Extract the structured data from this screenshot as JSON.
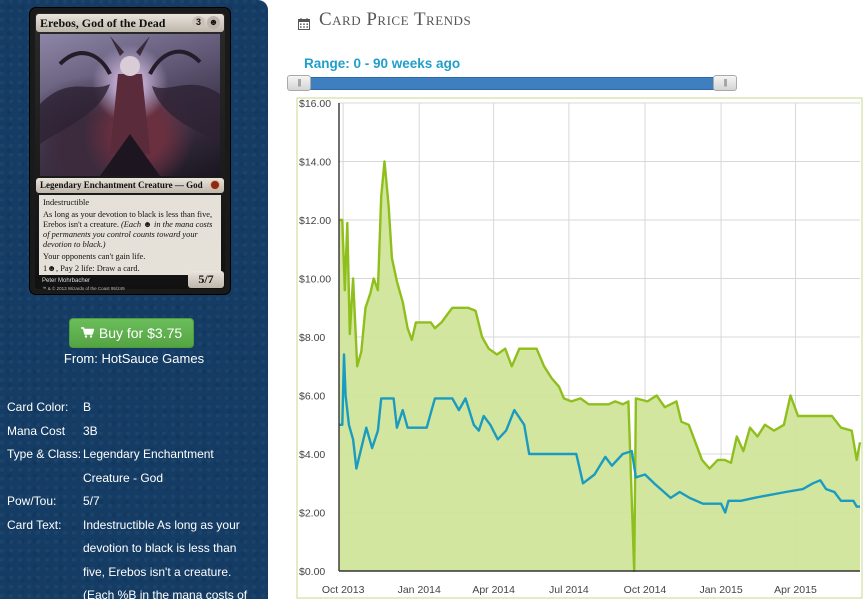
{
  "card": {
    "name": "Erebos, God of the Dead",
    "cost_generic": "3",
    "cost_black": "☻",
    "type_line": "Legendary Enchantment Creature — God",
    "text_line1": "Indestructible",
    "text_line2": "As long as your devotion to black is less than five, Erebos isn't a creature.",
    "text_reminder": "(Each ☻ in the mana costs of permanents you control counts toward your devotion to black.)",
    "text_line3": "Your opponents can't gain life.",
    "text_line4": "1☻, Pay 2 life: Draw a card.",
    "power_toughness": "5/7",
    "artist": "Peter Mohrbacher",
    "copyright": "™ & © 2013 Wizards of the Coast 95/249"
  },
  "buy": {
    "label": "Buy for $3.75",
    "from": "From: HotSauce Games"
  },
  "details": [
    {
      "label": "Card Color:",
      "value": "B"
    },
    {
      "label": "Mana Cost",
      "value": "3B"
    },
    {
      "label": "Type & Class:",
      "value": "Legendary Enchantment"
    },
    {
      "label": "",
      "value": "Creature - God"
    },
    {
      "label": "Pow/Tou:",
      "value": "5/7"
    },
    {
      "label": "Card Text:",
      "value": "Indestructible As long as your"
    },
    {
      "label": "",
      "value": "devotion to black is less than"
    },
    {
      "label": "",
      "value": "five, Erebos isn't a creature."
    },
    {
      "label": "",
      "value": "(Each %B in the mana costs of"
    }
  ],
  "panel": {
    "title": "Card Price Trends",
    "range_label": "Range: 0 - 90 weeks ago",
    "calendar_icon": "calendar-icon"
  },
  "colors": {
    "sidebar_bg": "#143c64",
    "buy_green": "#5cb04b",
    "range_blue": "#1f9fc9",
    "series_high": "#8fbf1c",
    "series_high_fill": "#d1e59a",
    "series_low": "#1a9bc0"
  },
  "chart_data": {
    "type": "line",
    "yticks": [
      "$0.00",
      "$2.00",
      "$4.00",
      "$6.00",
      "$8.00",
      "$10.00",
      "$12.00",
      "$14.00",
      "$16.00"
    ],
    "xticks": [
      "Oct 2013",
      "Jan 2014",
      "Apr 2014",
      "Jul 2014",
      "Oct 2014",
      "Jan 2015",
      "Apr 2015"
    ],
    "ylim": [
      0,
      16
    ],
    "grid": true,
    "series": [
      {
        "color": "#8fbf1c",
        "fill": true,
        "values": [
          [
            "2013-09-26",
            12.0
          ],
          [
            "2013-09-30",
            12.0
          ],
          [
            "2013-10-03",
            9.6
          ],
          [
            "2013-10-06",
            11.9
          ],
          [
            "2013-10-09",
            8.1
          ],
          [
            "2013-10-13",
            10.0
          ],
          [
            "2013-10-18",
            7.0
          ],
          [
            "2013-10-23",
            7.5
          ],
          [
            "2013-10-28",
            9.0
          ],
          [
            "2013-11-03",
            9.5
          ],
          [
            "2013-11-07",
            10.0
          ],
          [
            "2013-11-12",
            9.6
          ],
          [
            "2013-11-16",
            12.8
          ],
          [
            "2013-11-20",
            14.0
          ],
          [
            "2013-11-25",
            12.5
          ],
          [
            "2013-11-29",
            10.7
          ],
          [
            "2013-12-05",
            9.9
          ],
          [
            "2013-12-12",
            9.2
          ],
          [
            "2013-12-18",
            8.3
          ],
          [
            "2013-12-23",
            7.9
          ],
          [
            "2013-12-28",
            8.5
          ],
          [
            "2014-01-15",
            8.5
          ],
          [
            "2014-01-20",
            8.3
          ],
          [
            "2014-01-28",
            8.5
          ],
          [
            "2014-02-10",
            9.0
          ],
          [
            "2014-03-01",
            9.0
          ],
          [
            "2014-03-10",
            8.9
          ],
          [
            "2014-03-18",
            8.0
          ],
          [
            "2014-03-26",
            7.6
          ],
          [
            "2014-04-05",
            7.4
          ],
          [
            "2014-04-15",
            7.6
          ],
          [
            "2014-04-23",
            7.0
          ],
          [
            "2014-05-02",
            7.6
          ],
          [
            "2014-05-23",
            7.6
          ],
          [
            "2014-06-01",
            7.0
          ],
          [
            "2014-06-10",
            6.6
          ],
          [
            "2014-06-19",
            6.3
          ],
          [
            "2014-06-25",
            5.9
          ],
          [
            "2014-07-04",
            5.8
          ],
          [
            "2014-07-15",
            5.9
          ],
          [
            "2014-07-25",
            5.7
          ],
          [
            "2014-08-06",
            5.7
          ],
          [
            "2014-08-18",
            5.7
          ],
          [
            "2014-08-26",
            5.8
          ],
          [
            "2014-09-04",
            5.7
          ],
          [
            "2014-09-11",
            5.8
          ],
          [
            "2014-09-18",
            0.0
          ],
          [
            "2014-09-20",
            5.9
          ],
          [
            "2014-10-04",
            5.8
          ],
          [
            "2014-10-15",
            6.0
          ],
          [
            "2014-10-25",
            5.6
          ],
          [
            "2014-11-08",
            5.8
          ],
          [
            "2014-11-14",
            5.1
          ],
          [
            "2014-11-23",
            5.0
          ],
          [
            "2014-12-01",
            4.4
          ],
          [
            "2014-12-09",
            3.8
          ],
          [
            "2014-12-18",
            3.5
          ],
          [
            "2014-12-28",
            3.8
          ],
          [
            "2015-01-05",
            3.8
          ],
          [
            "2015-01-13",
            3.7
          ],
          [
            "2015-01-20",
            4.6
          ],
          [
            "2015-01-28",
            4.1
          ],
          [
            "2015-02-05",
            4.9
          ],
          [
            "2015-02-14",
            4.6
          ],
          [
            "2015-02-23",
            5.0
          ],
          [
            "2015-03-06",
            4.8
          ],
          [
            "2015-03-18",
            5.0
          ],
          [
            "2015-03-26",
            6.0
          ],
          [
            "2015-04-04",
            5.3
          ],
          [
            "2015-04-20",
            5.3
          ],
          [
            "2015-05-03",
            5.3
          ],
          [
            "2015-05-15",
            5.3
          ],
          [
            "2015-05-26",
            4.9
          ],
          [
            "2015-06-08",
            4.8
          ],
          [
            "2015-06-14",
            3.8
          ],
          [
            "2015-06-18",
            4.4
          ]
        ]
      },
      {
        "color": "#1a9bc0",
        "fill": false,
        "values": [
          [
            "2013-09-26",
            5.0
          ],
          [
            "2013-09-30",
            5.0
          ],
          [
            "2013-10-02",
            7.4
          ],
          [
            "2013-10-04",
            6.0
          ],
          [
            "2013-10-08",
            5.0
          ],
          [
            "2013-10-13",
            4.5
          ],
          [
            "2013-10-17",
            3.5
          ],
          [
            "2013-10-23",
            4.2
          ],
          [
            "2013-10-29",
            4.9
          ],
          [
            "2013-11-05",
            4.2
          ],
          [
            "2013-11-12",
            4.8
          ],
          [
            "2013-11-16",
            5.9
          ],
          [
            "2013-12-01",
            5.9
          ],
          [
            "2013-12-05",
            4.9
          ],
          [
            "2013-12-12",
            5.5
          ],
          [
            "2013-12-18",
            4.9
          ],
          [
            "2014-01-10",
            4.9
          ],
          [
            "2014-01-20",
            5.9
          ],
          [
            "2014-02-10",
            5.9
          ],
          [
            "2014-02-18",
            5.5
          ],
          [
            "2014-02-26",
            5.9
          ],
          [
            "2014-03-08",
            5.0
          ],
          [
            "2014-03-14",
            4.8
          ],
          [
            "2014-03-20",
            5.3
          ],
          [
            "2014-03-28",
            5.0
          ],
          [
            "2014-04-06",
            4.5
          ],
          [
            "2014-04-16",
            4.8
          ],
          [
            "2014-04-26",
            5.5
          ],
          [
            "2014-05-08",
            5.0
          ],
          [
            "2014-05-14",
            4.0
          ],
          [
            "2014-06-20",
            4.0
          ],
          [
            "2014-07-10",
            4.0
          ],
          [
            "2014-07-18",
            3.0
          ],
          [
            "2014-08-01",
            3.3
          ],
          [
            "2014-08-14",
            3.9
          ],
          [
            "2014-08-22",
            3.6
          ],
          [
            "2014-09-04",
            4.0
          ],
          [
            "2014-09-15",
            4.1
          ],
          [
            "2014-09-20",
            3.2
          ],
          [
            "2014-10-01",
            3.3
          ],
          [
            "2014-10-12",
            3.0
          ],
          [
            "2014-10-20",
            2.8
          ],
          [
            "2014-11-01",
            2.5
          ],
          [
            "2014-11-12",
            2.7
          ],
          [
            "2014-11-24",
            2.5
          ],
          [
            "2014-12-10",
            2.3
          ],
          [
            "2015-01-01",
            2.3
          ],
          [
            "2015-01-06",
            2.0
          ],
          [
            "2015-01-10",
            2.4
          ],
          [
            "2015-01-25",
            2.4
          ],
          [
            "2015-02-10",
            2.5
          ],
          [
            "2015-03-01",
            2.6
          ],
          [
            "2015-03-20",
            2.7
          ],
          [
            "2015-04-10",
            2.8
          ],
          [
            "2015-04-22",
            3.0
          ],
          [
            "2015-05-01",
            3.1
          ],
          [
            "2015-05-08",
            2.8
          ],
          [
            "2015-05-18",
            2.7
          ],
          [
            "2015-05-26",
            2.4
          ],
          [
            "2015-06-10",
            2.4
          ],
          [
            "2015-06-14",
            2.2
          ],
          [
            "2015-06-18",
            2.2
          ]
        ]
      }
    ]
  }
}
